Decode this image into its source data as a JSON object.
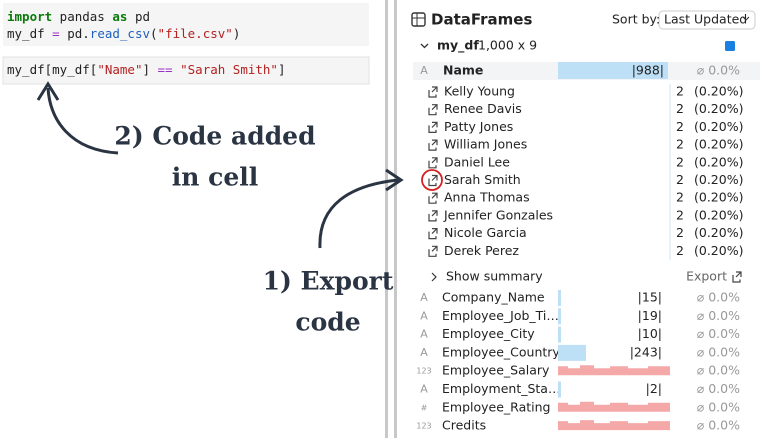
{
  "code_cells": [
    {
      "lines": [
        [
          {
            "text": "import",
            "color": "#0b7a0b",
            "weight": "bold"
          },
          {
            "text": " pandas ",
            "color": "#222"
          },
          {
            "text": "as",
            "color": "#0b7a0b",
            "weight": "bold"
          },
          {
            "text": " pd",
            "color": "#222"
          }
        ],
        [
          {
            "text": "my_df ",
            "color": "#222"
          },
          {
            "text": "=",
            "color": "#9b30c7"
          },
          {
            "text": " pd.",
            "color": "#222"
          },
          {
            "text": "read_csv",
            "color": "#1f5fbf"
          },
          {
            "text": "(",
            "color": "#222"
          },
          {
            "text": "\"file.csv\"",
            "color": "#b52121"
          },
          {
            "text": ")",
            "color": "#222"
          }
        ]
      ]
    },
    {
      "lines": [
        [
          {
            "text": "my_df[my_df[",
            "color": "#222"
          },
          {
            "text": "\"Name\"",
            "color": "#b52121"
          },
          {
            "text": "] ",
            "color": "#222"
          },
          {
            "text": "==",
            "color": "#9b30c7"
          },
          {
            "text": " ",
            "color": "#222"
          },
          {
            "text": "\"Sarah Smith\"",
            "color": "#b52121"
          },
          {
            "text": "]",
            "color": "#222"
          }
        ]
      ]
    }
  ],
  "annotations": [
    {
      "lines": [
        "2) Code added",
        "in cell"
      ]
    },
    {
      "lines": [
        "1) Export",
        "code"
      ]
    }
  ],
  "panel": {
    "title": "DataFrames",
    "sort_label": "Sort by:",
    "sort_value": "Last Updated",
    "dataframe": {
      "name": "my_df",
      "shape": "1,000 x 9"
    },
    "expanded_column": {
      "type": "A",
      "name": "Name",
      "unique": "|988|",
      "missing": "⌀ 0.0%",
      "rows": [
        {
          "value": "Kelly Young",
          "count": "2",
          "percent": "(0.20%)"
        },
        {
          "value": "Renee Davis",
          "count": "2",
          "percent": "(0.20%)"
        },
        {
          "value": "Patty Jones",
          "count": "2",
          "percent": "(0.20%)"
        },
        {
          "value": "William Jones",
          "count": "2",
          "percent": "(0.20%)"
        },
        {
          "value": "Daniel Lee",
          "count": "2",
          "percent": "(0.20%)"
        },
        {
          "value": "Sarah Smith",
          "count": "2",
          "percent": "(0.20%)"
        },
        {
          "value": "Anna Thomas",
          "count": "2",
          "percent": "(0.20%)"
        },
        {
          "value": "Jennifer Gonzales",
          "count": "2",
          "percent": "(0.20%)"
        },
        {
          "value": "Nicole Garcia",
          "count": "2",
          "percent": "(0.20%)"
        },
        {
          "value": "Derek Perez",
          "count": "2",
          "percent": "(0.20%)"
        }
      ]
    },
    "show_summary": "Show summary",
    "export": "Export",
    "columns": [
      {
        "type": "A",
        "name": "Company_Name",
        "unique": "|15|",
        "missing": "⌀ 0.0%"
      },
      {
        "type": "A",
        "name": "Employee_Job_Ti…",
        "unique": "|19|",
        "missing": "⌀ 0.0%"
      },
      {
        "type": "A",
        "name": "Employee_City",
        "unique": "|10|",
        "missing": "⌀ 0.0%"
      },
      {
        "type": "A",
        "name": "Employee_Country",
        "unique": "|243|",
        "missing": "⌀ 0.0%"
      },
      {
        "type": "123",
        "name": "Employee_Salary",
        "missing": "⌀ 0.0%"
      },
      {
        "type": "A",
        "name": "Employment_Sta…",
        "unique": "|2|",
        "missing": "⌀ 0.0%"
      },
      {
        "type": "#",
        "name": "Employee_Rating",
        "missing": "⌀ 0.0%"
      },
      {
        "type": "123",
        "name": "Credits",
        "missing": "⌀ 0.0%"
      }
    ]
  }
}
